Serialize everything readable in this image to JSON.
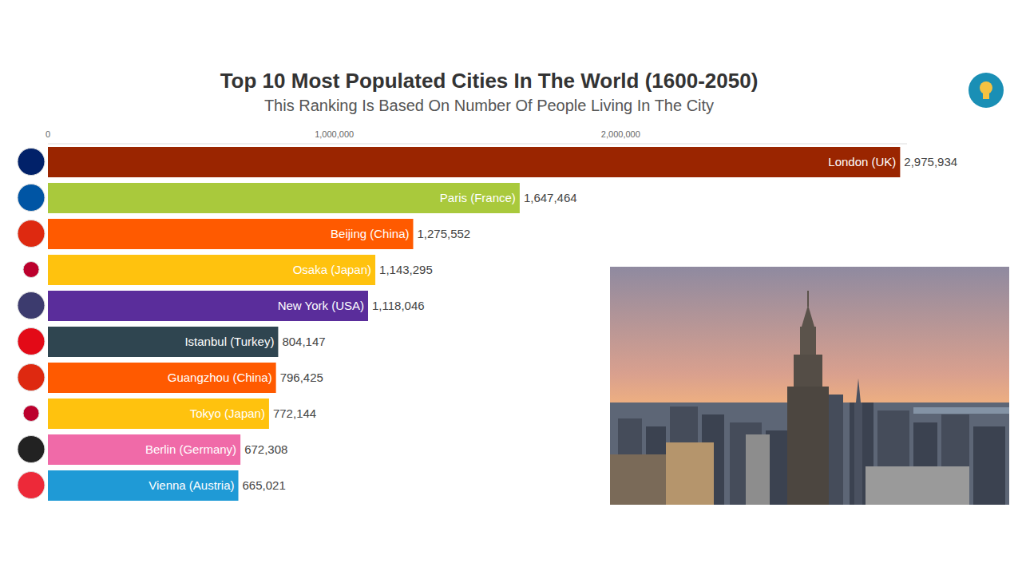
{
  "chart_data": {
    "type": "bar",
    "orientation": "horizontal",
    "title": "Top 10 Most Populated Cities In The World (1600-2050)",
    "subtitle": "This Ranking Is Based On Number Of People Living In The City",
    "categories": [
      "London (UK)",
      "Paris (France)",
      "Beijing (China)",
      "Osaka (Japan)",
      "New York (USA)",
      "Istanbul (Turkey)",
      "Guangzhou (China)",
      "Tokyo (Japan)",
      "Berlin (Germany)",
      "Vienna (Austria)"
    ],
    "values": [
      2975934,
      1647464,
      1275552,
      1143295,
      1118046,
      804147,
      796425,
      772144,
      672308,
      665021
    ],
    "value_labels": [
      "2,975,934",
      "1,647,464",
      "1,275,552",
      "1,143,295",
      "1,118,046",
      "804,147",
      "796,425",
      "772,144",
      "672,308",
      "665,021"
    ],
    "colors": [
      "#9a2500",
      "#a9c93c",
      "#ff5a00",
      "#ffc20e",
      "#5a2d9b",
      "#2f4550",
      "#ff5a00",
      "#ffc20e",
      "#f06aa8",
      "#1f9ad6"
    ],
    "xlim": [
      0,
      3000000
    ],
    "xticks": [
      0,
      {
        "value": 1000000,
        "label": "1,000,000"
      },
      {
        "value": 2000000,
        "label": "2,000,000"
      }
    ],
    "data_labels": true,
    "tick_labels": "x",
    "grid": false
  }
}
